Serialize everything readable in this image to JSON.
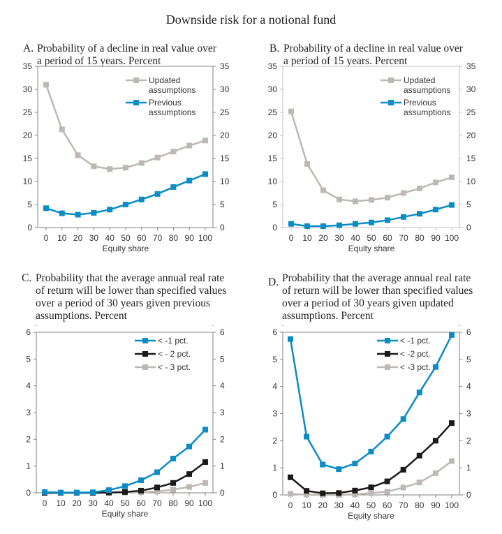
{
  "title": "Downside risk for a notional fund",
  "chart_data": [
    {
      "id": "A",
      "type": "line",
      "label": "A.",
      "title_lines": [
        "Probability of a decline in real value over",
        "a period of 15 years. Percent"
      ],
      "xlabel": "Equity share",
      "ylabel": "",
      "x": [
        0,
        10,
        20,
        30,
        40,
        50,
        60,
        70,
        80,
        90,
        100
      ],
      "ylim": [
        0,
        35
      ],
      "yticks": [
        0,
        5,
        10,
        15,
        20,
        25,
        30,
        35
      ],
      "grid": false,
      "legend_position": "top-right",
      "axis_color": "#808080",
      "series": [
        {
          "name": "Updated assumptions",
          "legend_lines": [
            "Updated",
            "assumptions"
          ],
          "color": "#bdb8b3",
          "values": [
            31.0,
            21.3,
            15.7,
            13.3,
            12.7,
            13.0,
            14.0,
            15.2,
            16.5,
            17.8,
            18.9
          ]
        },
        {
          "name": "Previous assumptions",
          "legend_lines": [
            "Previous",
            "assumptions"
          ],
          "color": "#0a8cc4",
          "values": [
            4.2,
            3.1,
            2.8,
            3.2,
            3.9,
            5.0,
            6.1,
            7.3,
            8.8,
            10.2,
            11.6
          ]
        }
      ]
    },
    {
      "id": "B",
      "type": "line",
      "label": "B.",
      "title_lines": [
        "Probability of a decline in real value over",
        "a period of 15 years. Percent"
      ],
      "xlabel": "Equity share",
      "ylabel": "",
      "x": [
        0,
        10,
        20,
        30,
        40,
        50,
        60,
        70,
        80,
        90,
        100
      ],
      "ylim": [
        0,
        35
      ],
      "yticks": [
        0,
        5,
        10,
        15,
        20,
        25,
        30,
        35
      ],
      "grid": false,
      "legend_position": "top-right",
      "axis_color": "#c0c0c0",
      "series": [
        {
          "name": "Updated assumptions",
          "legend_lines": [
            "Updated",
            "assumptions"
          ],
          "color": "#bdb8b3",
          "values": [
            25.2,
            13.8,
            8.1,
            6.1,
            5.7,
            6.0,
            6.5,
            7.5,
            8.5,
            9.8,
            10.9
          ]
        },
        {
          "name": "Previous assumptions",
          "legend_lines": [
            "Previous",
            "assumptions"
          ],
          "color": "#0a8cc4",
          "values": [
            0.8,
            0.3,
            0.3,
            0.5,
            0.8,
            1.1,
            1.6,
            2.3,
            3.0,
            3.9,
            4.9
          ]
        }
      ]
    },
    {
      "id": "C",
      "type": "line",
      "label": "C.",
      "title_lines": [
        "Probability that the average annual real rate",
        "of return will be lower than specified values",
        "over a period of 30 years given previous",
        "assumptions. Percent"
      ],
      "xlabel": "Equity share",
      "ylabel": "",
      "x": [
        0,
        10,
        20,
        30,
        40,
        50,
        60,
        70,
        80,
        90,
        100
      ],
      "ylim": [
        0,
        6
      ],
      "yticks": [
        0,
        1,
        2,
        3,
        4,
        5,
        6
      ],
      "grid": false,
      "legend_position": "top-right",
      "axis_color": "#808080",
      "series": [
        {
          "name": "< -1 pct.",
          "legend_lines": [
            "< -1 pct."
          ],
          "color": "#0a8cc4",
          "values": [
            0.03,
            0.01,
            0.01,
            0.02,
            0.1,
            0.25,
            0.47,
            0.77,
            1.28,
            1.73,
            2.36
          ]
        },
        {
          "name": "< - 2  pct.",
          "legend_lines": [
            "< - 2  pct."
          ],
          "color": "#1a1a1a",
          "values": [
            0.0,
            0.0,
            0.0,
            0.0,
            0.01,
            0.03,
            0.08,
            0.2,
            0.37,
            0.7,
            1.15
          ]
        },
        {
          "name": "< - 3  pct.",
          "legend_lines": [
            "< - 3  pct."
          ],
          "color": "#bdb8b3",
          "values": [
            0.0,
            0.0,
            0.0,
            0.0,
            0.0,
            0.01,
            0.02,
            0.05,
            0.12,
            0.22,
            0.37
          ]
        }
      ]
    },
    {
      "id": "D",
      "type": "line",
      "label": "D.",
      "title_lines": [
        "Probability that the average annual real rate",
        "of return will be lower than specified values",
        "over a period of 30 years given updated",
        "assumptions. Percent"
      ],
      "xlabel": "Equity share",
      "ylabel": "",
      "x": [
        0,
        10,
        20,
        30,
        40,
        50,
        60,
        70,
        80,
        90,
        100
      ],
      "ylim": [
        0,
        6
      ],
      "yticks": [
        0,
        1,
        2,
        3,
        4,
        5,
        6
      ],
      "grid": false,
      "legend_position": "top-right",
      "axis_color": "#808080",
      "series": [
        {
          "name": "< -1 pct.",
          "legend_lines": [
            "< -1 pct."
          ],
          "color": "#0a8cc4",
          "values": [
            5.75,
            2.15,
            1.12,
            0.95,
            1.16,
            1.6,
            2.15,
            2.8,
            3.78,
            4.72,
            5.9
          ]
        },
        {
          "name": "< -2 pct.",
          "legend_lines": [
            "< -2 pct."
          ],
          "color": "#1a1a1a",
          "values": [
            0.65,
            0.15,
            0.06,
            0.07,
            0.16,
            0.28,
            0.5,
            0.93,
            1.45,
            2.0,
            2.65
          ]
        },
        {
          "name": "< -3 pct.",
          "legend_lines": [
            "< -3 pct."
          ],
          "color": "#bdb8b3",
          "values": [
            0.04,
            0.01,
            0.0,
            0.0,
            0.02,
            0.07,
            0.12,
            0.27,
            0.46,
            0.8,
            1.25
          ]
        }
      ]
    }
  ]
}
